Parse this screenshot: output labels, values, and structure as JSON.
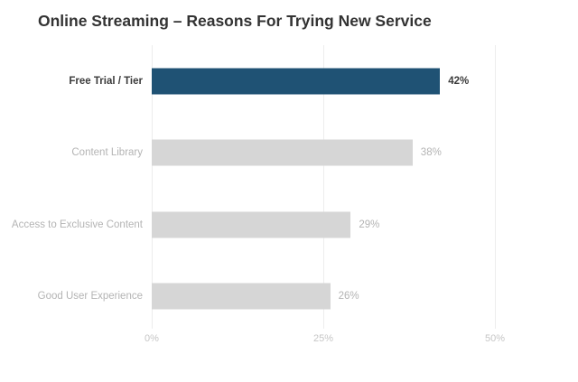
{
  "colors": {
    "background": "#ffffff",
    "accent_bar": "#1f5274",
    "muted_bar": "#d6d6d6",
    "muted_text": "#b4b4b4",
    "tick_text": "#c6c6c6",
    "gridline": "#ededed",
    "dark_text": "#333333"
  },
  "chart_data": {
    "type": "bar",
    "orientation": "horizontal",
    "title": "Online Streaming – Reasons For Trying New Service",
    "categories": [
      "Free Trial / Tier",
      "Content Library",
      "Access to Exclusive Content",
      "Good User Experience"
    ],
    "values": [
      42,
      38,
      29,
      26
    ],
    "value_labels": [
      "42%",
      "38%",
      "29%",
      "26%"
    ],
    "highlighted_index": 0,
    "highlighted_category": "Free Trial / Tier",
    "x_tick_labels": [
      "0%",
      "25%",
      "50%"
    ],
    "x_tick_values": [
      0,
      25,
      50
    ],
    "xlim": [
      0,
      50
    ],
    "grid": true,
    "legend": false,
    "xlabel": "",
    "ylabel": ""
  }
}
